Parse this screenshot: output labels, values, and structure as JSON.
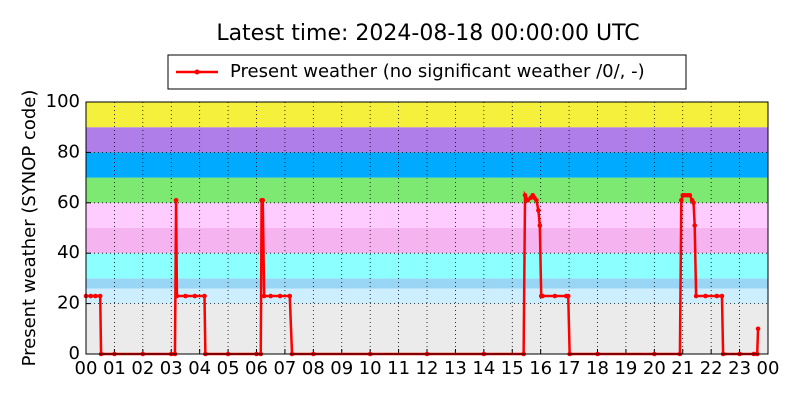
{
  "chart_data": {
    "type": "line",
    "title": "Latest time: 2024-08-18 00:00:00 UTC",
    "y_label": "Present weather (SYNOP code)",
    "series": [
      {
        "name": "Present weather (no significant weather /0/, -)",
        "color": "#ff0000",
        "x": [
          0,
          0.17,
          0.33,
          0.5,
          0.53,
          1,
          2,
          3,
          3.13,
          3.17,
          3.2,
          3.5,
          3.83,
          4.17,
          4.2,
          5,
          6,
          6.15,
          6.18,
          6.22,
          6.27,
          6.5,
          6.83,
          7.17,
          7.25,
          8,
          10,
          12,
          14,
          15.4,
          15.45,
          15.55,
          15.65,
          15.72,
          15.78,
          15.85,
          15.92,
          15.97,
          16.02,
          16.07,
          16.5,
          16.9,
          16.97,
          17.02,
          18,
          20,
          20.9,
          20.95,
          21.0,
          21.08,
          21.17,
          21.25,
          21.33,
          21.38,
          21.42,
          21.47,
          21.8,
          22.2,
          22.38,
          22.42,
          23,
          23.5,
          23.62,
          23.65
        ],
        "values": [
          23,
          23,
          23,
          23,
          0,
          0,
          0,
          0,
          0,
          61,
          23,
          23,
          23,
          23,
          0,
          0,
          0,
          0,
          61,
          61,
          23,
          23,
          23,
          23,
          0,
          0,
          0,
          0,
          0,
          0,
          63,
          61,
          62,
          63,
          62,
          61,
          57,
          51,
          23,
          23,
          23,
          23,
          23,
          0,
          0,
          0,
          0,
          61,
          63,
          63,
          63,
          63,
          61,
          60,
          51,
          23,
          23,
          23,
          23,
          0,
          0,
          0,
          0,
          10
        ]
      }
    ],
    "xlim": [
      0,
      24
    ],
    "xticks": [
      {
        "value": 0,
        "label": "00"
      },
      {
        "value": 1,
        "label": "01"
      },
      {
        "value": 2,
        "label": "02"
      },
      {
        "value": 3,
        "label": "03"
      },
      {
        "value": 4,
        "label": "04"
      },
      {
        "value": 5,
        "label": "05"
      },
      {
        "value": 6,
        "label": "06"
      },
      {
        "value": 7,
        "label": "07"
      },
      {
        "value": 8,
        "label": "08"
      },
      {
        "value": 9,
        "label": "09"
      },
      {
        "value": 10,
        "label": "10"
      },
      {
        "value": 11,
        "label": "11"
      },
      {
        "value": 12,
        "label": "12"
      },
      {
        "value": 13,
        "label": "13"
      },
      {
        "value": 14,
        "label": "14"
      },
      {
        "value": 15,
        "label": "15"
      },
      {
        "value": 16,
        "label": "16"
      },
      {
        "value": 17,
        "label": "17"
      },
      {
        "value": 18,
        "label": "18"
      },
      {
        "value": 19,
        "label": "19"
      },
      {
        "value": 20,
        "label": "20"
      },
      {
        "value": 21,
        "label": "21"
      },
      {
        "value": 22,
        "label": "22"
      },
      {
        "value": 23,
        "label": "23"
      },
      {
        "value": 24,
        "label": "00"
      }
    ],
    "ylim": [
      0,
      100
    ],
    "yticks": [
      0,
      20,
      40,
      60,
      80,
      100
    ],
    "grid": true,
    "legend": "top",
    "bands": [
      {
        "from": 0,
        "to": 20,
        "color": "#ebebeb"
      },
      {
        "from": 20,
        "to": 26,
        "color": "#cdeeff"
      },
      {
        "from": 26,
        "to": 30,
        "color": "#99d6f5"
      },
      {
        "from": 30,
        "to": 40,
        "color": "#8cffff"
      },
      {
        "from": 40,
        "to": 50,
        "color": "#f5b3f0"
      },
      {
        "from": 50,
        "to": 60,
        "color": "#ffccff"
      },
      {
        "from": 60,
        "to": 70,
        "color": "#7de872"
      },
      {
        "from": 70,
        "to": 80,
        "color": "#00aaff"
      },
      {
        "from": 80,
        "to": 90,
        "color": "#b07ee8"
      },
      {
        "from": 90,
        "to": 100,
        "color": "#f5f03c"
      }
    ]
  }
}
